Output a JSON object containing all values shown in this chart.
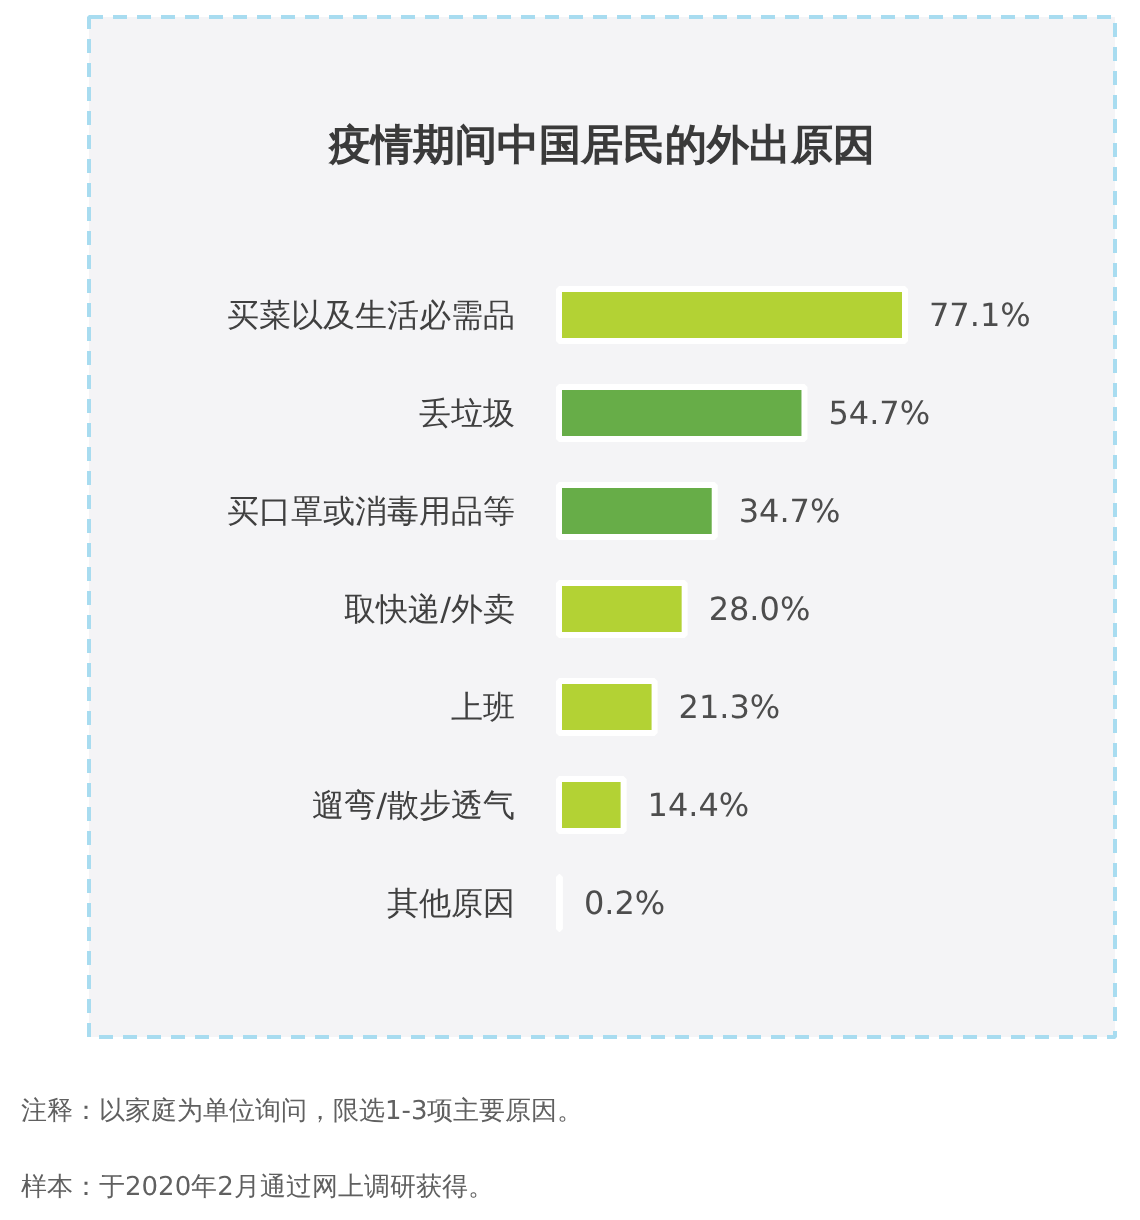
{
  "chart_data": {
    "type": "bar",
    "orientation": "horizontal",
    "title": "疫情期间中国居民的外出原因",
    "categories": [
      "买菜以及生活必需品",
      "丢垃圾",
      "买口罩或消毒用品等",
      "取快递/外卖",
      "上班",
      "遛弯/散步透气",
      "其他原因"
    ],
    "values": [
      77.1,
      54.7,
      34.7,
      28.0,
      21.3,
      14.4,
      0.2
    ],
    "colors": [
      "#b3d234",
      "#67ad48",
      "#67ad48",
      "#b3d234",
      "#b3d234",
      "#b3d234",
      "#b3d234"
    ],
    "value_labels": [
      "77.1%",
      "54.7%",
      "34.7%",
      "28.0%",
      "21.3%",
      "14.4%",
      "0.2%"
    ],
    "annotations": [
      "注释：以家庭为单位询问，限选1-3项主要原因。",
      "样本：于2020年2月通过网上调研获得。"
    ]
  }
}
